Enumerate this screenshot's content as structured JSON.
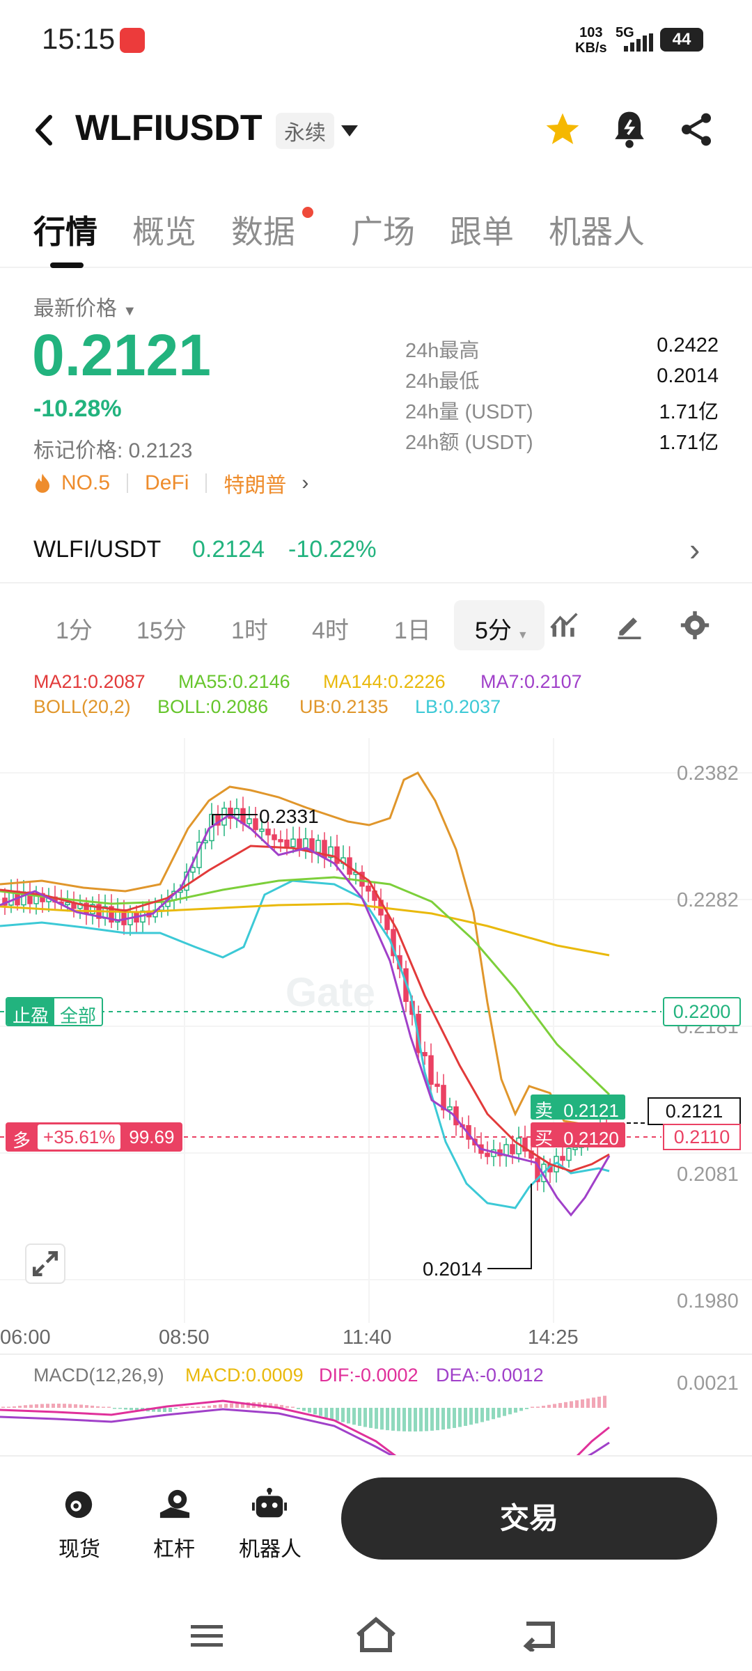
{
  "status": {
    "time": "15:15",
    "net_speed_value": "103",
    "net_speed_unit": "KB/s",
    "network": "5G",
    "battery": "44"
  },
  "header": {
    "symbol": "WLFIUSDT",
    "contract_type": "永续"
  },
  "tabs": [
    "行情",
    "概览",
    "数据",
    "广场",
    "跟单",
    "机器人"
  ],
  "price": {
    "latest_label": "最新价格",
    "latest": "0.2121",
    "change": "-10.28%",
    "mark_label": "标记价格: 0.2123",
    "rank": "NO.5",
    "tag1": "DeFi",
    "tag2": "特朗普",
    "stats": [
      {
        "label": "24h最高",
        "value": "0.2422"
      },
      {
        "label": "24h最低",
        "value": "0.2014"
      },
      {
        "label": "24h量 (USDT)",
        "value": "1.71亿"
      },
      {
        "label": "24h额 (USDT)",
        "value": "1.71亿"
      }
    ]
  },
  "spot": {
    "pair": "WLFI/USDT",
    "price": "0.2124",
    "change": "-10.22%"
  },
  "timeframes": [
    "1分",
    "15分",
    "1时",
    "4时",
    "1日",
    "5分"
  ],
  "chart": {
    "ma21": "MA21:0.2087",
    "ma55": "MA55:0.2146",
    "ma144": "MA144:0.2226",
    "ma7": "MA7:0.2107",
    "boll_params": "BOLL(20,2)",
    "boll": "BOLL:0.2086",
    "ub": "UB:0.2135",
    "lb": "LB:0.2037",
    "y_ticks": [
      "0.2382",
      "0.2282",
      "0.2181",
      "0.2081",
      "0.1980"
    ],
    "x_ticks": [
      "06:00",
      "08:50",
      "11:40",
      "14:25"
    ],
    "high_label": "0.2331",
    "low_label": "0.2014",
    "tp_label": "止盈",
    "tp_all": "全部",
    "tp_price": "0.2200",
    "long_label": "多",
    "long_pct": "+35.61%",
    "long_value": "99.69",
    "sell_label": "卖",
    "sell_price": "0.2121",
    "buy_label": "买",
    "buy_price": "0.2120",
    "last_price_tag": "0.2121",
    "entry_price_tag": "0.2110",
    "watermark": "Gate",
    "macd_params": "MACD(12,26,9)",
    "macd": "MACD:0.0009",
    "dif": "DIF:-0.0002",
    "dea": "DEA:-0.0012",
    "macd_tick": "0.0021",
    "colors": {
      "up": "#22b37e",
      "down": "#ea4163",
      "ma21": "#e23a3a",
      "ma55": "#7ccf3a",
      "ma144": "#e9b90c",
      "ma7": "#a040c9",
      "boll": "#e0962b",
      "lb": "#3cc9d6"
    }
  },
  "chart_data": {
    "type": "line",
    "x": [
      "06:00",
      "08:50",
      "11:40",
      "14:25"
    ],
    "ylim": [
      0.198,
      0.2382
    ],
    "series": [
      {
        "name": "MA21:0.2087",
        "values": [
          0.226,
          0.229,
          0.227,
          0.2087
        ]
      },
      {
        "name": "MA55:0.2146",
        "values": [
          0.225,
          0.2265,
          0.228,
          0.2146
        ]
      },
      {
        "name": "MA144:0.2226",
        "values": [
          0.2255,
          0.2265,
          0.2275,
          0.2226
        ]
      },
      {
        "name": "MA7:0.2107",
        "values": [
          0.225,
          0.232,
          0.225,
          0.2107
        ]
      }
    ]
  },
  "bottom_nav": [
    {
      "label": "现货"
    },
    {
      "label": "杠杆"
    },
    {
      "label": "机器人"
    }
  ],
  "trade_button": "交易"
}
